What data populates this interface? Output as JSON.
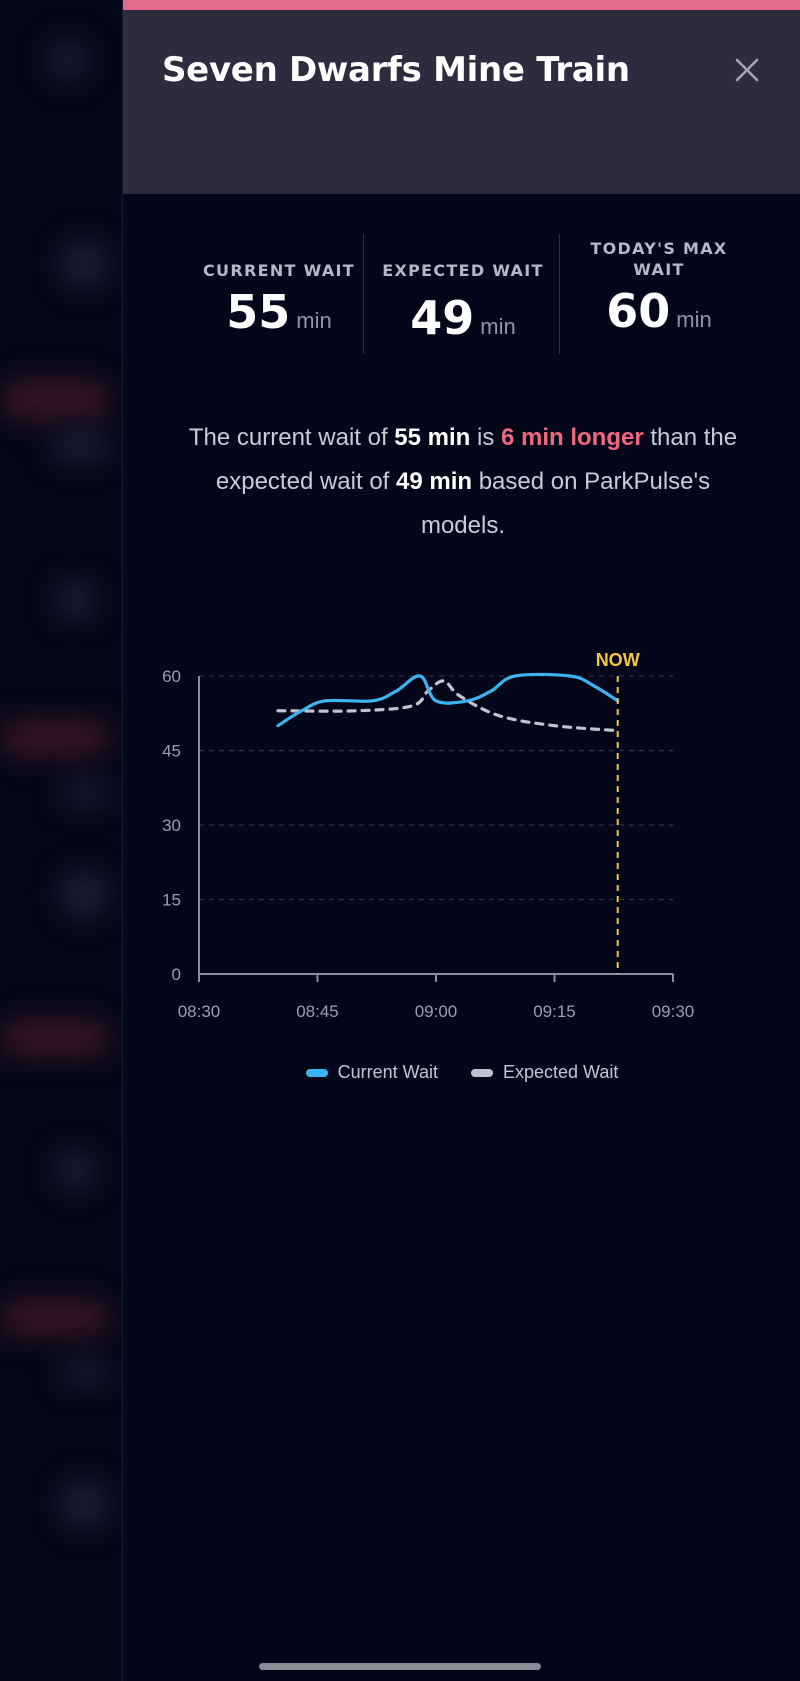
{
  "ride": {
    "title": "Seven Dwarfs Mine Train"
  },
  "stats": {
    "current": {
      "label": "Current Wait",
      "value": "55",
      "unit": "min"
    },
    "expected": {
      "label": "Expected Wait",
      "value": "49",
      "unit": "min"
    },
    "max": {
      "label": "Today's Max Wait",
      "value": "60",
      "unit": "min"
    }
  },
  "message": {
    "p1": "The current wait of ",
    "current": "55 min",
    "p2": " is ",
    "diff": "6 min longer",
    "p3": " than the expected wait of ",
    "expected": "49 min",
    "p4": " based on ParkPulse's models."
  },
  "legend": {
    "current": "Current Wait",
    "expected": "Expected Wait"
  },
  "colors": {
    "accent": "#e46a8b",
    "current_line": "#3db4f2",
    "expected_line": "#c0c4ce",
    "now_line": "#f4c542",
    "diff_text": "#f0677f"
  },
  "chart_data": {
    "type": "line",
    "x_labels": [
      "08:30",
      "08:45",
      "09:00",
      "09:15",
      "09:30"
    ],
    "y_ticks": [
      0,
      15,
      30,
      45,
      60
    ],
    "ylim": [
      0,
      60
    ],
    "xlim": [
      "08:30",
      "09:30"
    ],
    "grid": true,
    "now_label": "NOW",
    "now_time": "09:23",
    "series": [
      {
        "name": "Current Wait",
        "style": "solid",
        "points": [
          [
            "08:40",
            50
          ],
          [
            "08:43",
            53
          ],
          [
            "08:46",
            55
          ],
          [
            "08:52",
            55
          ],
          [
            "08:55",
            57
          ],
          [
            "08:58",
            60
          ],
          [
            "09:00",
            55
          ],
          [
            "09:04",
            55
          ],
          [
            "09:07",
            57
          ],
          [
            "09:10",
            60
          ],
          [
            "09:17",
            60
          ],
          [
            "09:20",
            58
          ],
          [
            "09:23",
            55
          ]
        ]
      },
      {
        "name": "Expected Wait",
        "style": "dashed",
        "points": [
          [
            "08:40",
            53
          ],
          [
            "08:50",
            53
          ],
          [
            "08:57",
            54
          ],
          [
            "08:59",
            57
          ],
          [
            "09:01",
            59
          ],
          [
            "09:03",
            56
          ],
          [
            "09:08",
            52
          ],
          [
            "09:15",
            50
          ],
          [
            "09:23",
            49
          ]
        ]
      }
    ]
  }
}
